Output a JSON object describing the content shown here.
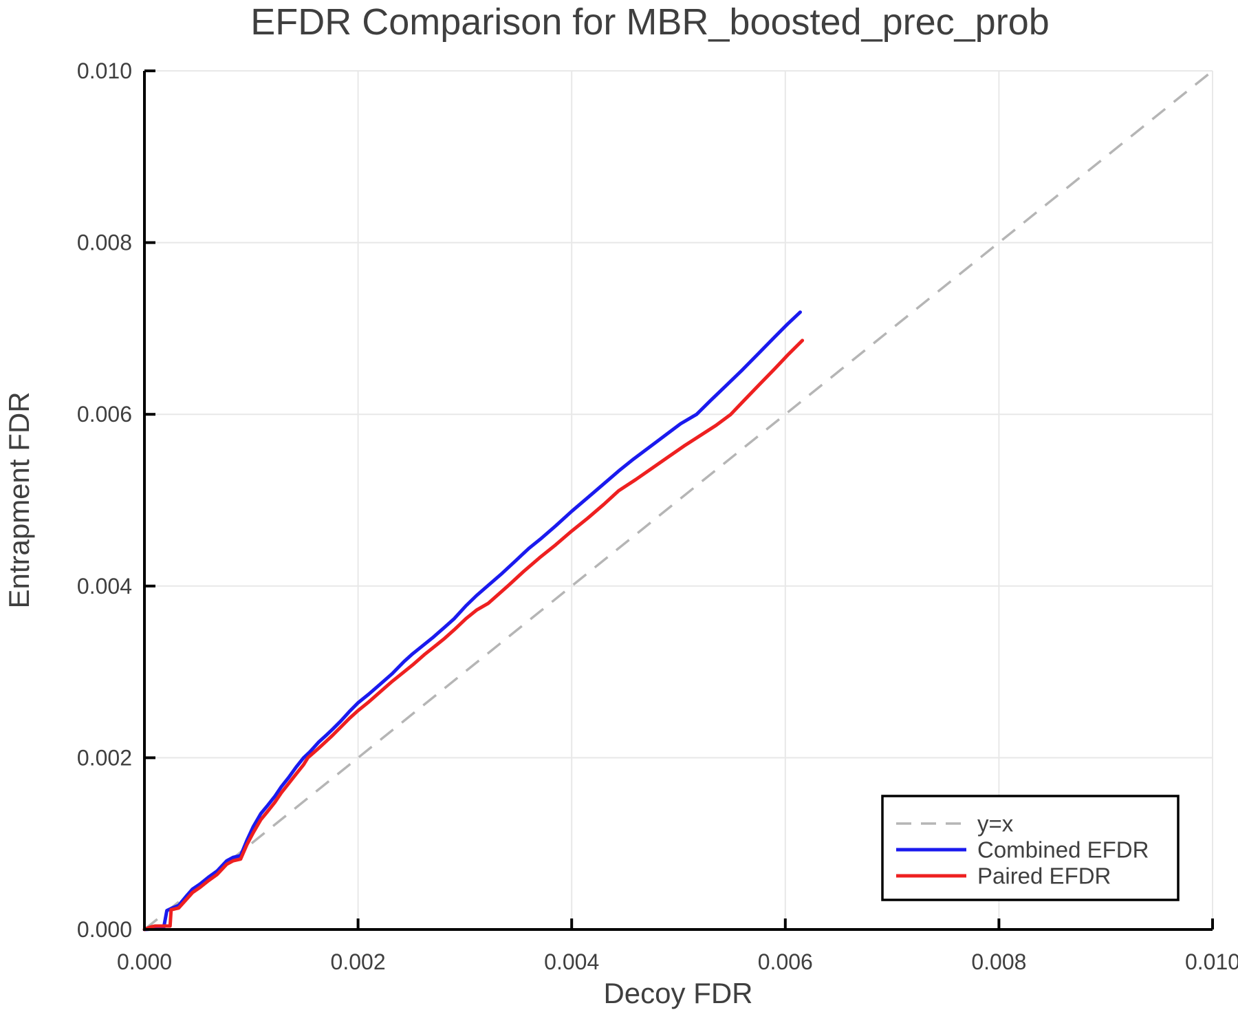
{
  "chart_data": {
    "type": "line",
    "title": "EFDR Comparison for MBR_boosted_prec_prob",
    "xlabel": "Decoy FDR",
    "ylabel": "Entrapment FDR",
    "xlim": [
      0.0,
      0.01
    ],
    "ylim": [
      0.0,
      0.01
    ],
    "x_ticks": [
      0.0,
      0.002,
      0.004,
      0.006,
      0.008,
      0.01
    ],
    "x_tick_labels": [
      "0.000",
      "0.002",
      "0.004",
      "0.006",
      "0.008",
      "0.010"
    ],
    "y_ticks": [
      0.0,
      0.002,
      0.004,
      0.006,
      0.008,
      0.01
    ],
    "y_tick_labels": [
      "0.000",
      "0.002",
      "0.004",
      "0.006",
      "0.008",
      "0.010"
    ],
    "grid": true,
    "legend_position": "lower right",
    "colors": {
      "combined": "#1a1aee",
      "paired": "#ee2020",
      "identity": "#b5b5b5",
      "gridline": "#e8e8e8",
      "text": "#3f3f3f",
      "spine": "#000000",
      "legend_border": "#000000",
      "background": "#ffffff"
    },
    "identity_line": {
      "label": "y=x",
      "from": [
        0.0,
        0.0
      ],
      "to": [
        0.01,
        0.01
      ],
      "dashed": true
    },
    "legend_entries": [
      {
        "label": "y=x",
        "series": "identity",
        "dashed": true
      },
      {
        "label": "Combined EFDR",
        "series": "combined",
        "dashed": false
      },
      {
        "label": "Paired EFDR",
        "series": "paired",
        "dashed": false
      }
    ],
    "series": [
      {
        "name": "Combined EFDR",
        "key": "combined",
        "points": [
          [
            0.0,
            0.0
          ],
          [
            0.00014,
            1e-05
          ],
          [
            0.00018,
            2e-05
          ],
          [
            0.00021,
            0.00022
          ],
          [
            0.00026,
            0.00025
          ],
          [
            0.00032,
            0.00028
          ],
          [
            0.0004,
            0.0004
          ],
          [
            0.00045,
            0.00047
          ],
          [
            0.00052,
            0.00053
          ],
          [
            0.0006,
            0.00061
          ],
          [
            0.00068,
            0.00068
          ],
          [
            0.00077,
            0.0008
          ],
          [
            0.00083,
            0.00084
          ],
          [
            0.0009,
            0.00086
          ],
          [
            0.00096,
            0.00104
          ],
          [
            0.00102,
            0.0012
          ],
          [
            0.00109,
            0.00135
          ],
          [
            0.00115,
            0.00144
          ],
          [
            0.00122,
            0.00155
          ],
          [
            0.00128,
            0.00166
          ],
          [
            0.00135,
            0.00177
          ],
          [
            0.00142,
            0.00189
          ],
          [
            0.00149,
            0.002
          ],
          [
            0.00155,
            0.00207
          ],
          [
            0.00163,
            0.00218
          ],
          [
            0.0017,
            0.00226
          ],
          [
            0.00176,
            0.00233
          ],
          [
            0.00184,
            0.00243
          ],
          [
            0.00192,
            0.00254
          ],
          [
            0.002,
            0.00264
          ],
          [
            0.0021,
            0.00274
          ],
          [
            0.00221,
            0.00286
          ],
          [
            0.00232,
            0.00298
          ],
          [
            0.00243,
            0.00312
          ],
          [
            0.00251,
            0.00321
          ],
          [
            0.00262,
            0.00332
          ],
          [
            0.0027,
            0.0034
          ],
          [
            0.00281,
            0.00352
          ],
          [
            0.0029,
            0.00362
          ],
          [
            0.00301,
            0.00377
          ],
          [
            0.00311,
            0.00389
          ],
          [
            0.00322,
            0.00401
          ],
          [
            0.00335,
            0.00415
          ],
          [
            0.00348,
            0.0043
          ],
          [
            0.0036,
            0.00444
          ],
          [
            0.00372,
            0.00456
          ],
          [
            0.00385,
            0.0047
          ],
          [
            0.004,
            0.00487
          ],
          [
            0.00415,
            0.00503
          ],
          [
            0.0043,
            0.00519
          ],
          [
            0.00444,
            0.00534
          ],
          [
            0.00458,
            0.00548
          ],
          [
            0.00472,
            0.00561
          ],
          [
            0.00487,
            0.00575
          ],
          [
            0.00502,
            0.00589
          ],
          [
            0.00517,
            0.006
          ],
          [
            0.0053,
            0.00616
          ],
          [
            0.00545,
            0.00634
          ],
          [
            0.0056,
            0.00652
          ],
          [
            0.00575,
            0.00671
          ],
          [
            0.0059,
            0.0069
          ],
          [
            0.00602,
            0.00705
          ],
          [
            0.00614,
            0.00719
          ]
        ]
      },
      {
        "name": "Paired EFDR",
        "key": "paired",
        "points": [
          [
            0.0,
            0.0
          ],
          [
            6e-05,
            3e-05
          ],
          [
            0.0001,
            4e-05
          ],
          [
            0.00024,
            4e-05
          ],
          [
            0.00025,
            0.00023
          ],
          [
            0.00032,
            0.00025
          ],
          [
            0.0004,
            0.00036
          ],
          [
            0.00045,
            0.00043
          ],
          [
            0.00052,
            0.00049
          ],
          [
            0.0006,
            0.00057
          ],
          [
            0.00068,
            0.00064
          ],
          [
            0.00077,
            0.00076
          ],
          [
            0.00083,
            0.0008
          ],
          [
            0.0009,
            0.00082
          ],
          [
            0.00096,
            0.00099
          ],
          [
            0.00102,
            0.00113
          ],
          [
            0.00109,
            0.00128
          ],
          [
            0.00115,
            0.00137
          ],
          [
            0.00122,
            0.00148
          ],
          [
            0.00128,
            0.00159
          ],
          [
            0.00135,
            0.0017
          ],
          [
            0.00142,
            0.00181
          ],
          [
            0.00149,
            0.00192
          ],
          [
            0.00153,
            0.002
          ],
          [
            0.00163,
            0.00211
          ],
          [
            0.0017,
            0.00219
          ],
          [
            0.00176,
            0.00226
          ],
          [
            0.00184,
            0.00236
          ],
          [
            0.00192,
            0.00246
          ],
          [
            0.002,
            0.00255
          ],
          [
            0.0021,
            0.00265
          ],
          [
            0.00221,
            0.00277
          ],
          [
            0.00232,
            0.00289
          ],
          [
            0.00243,
            0.003
          ],
          [
            0.00251,
            0.00308
          ],
          [
            0.00262,
            0.0032
          ],
          [
            0.0027,
            0.00328
          ],
          [
            0.00281,
            0.00339
          ],
          [
            0.0029,
            0.00349
          ],
          [
            0.00301,
            0.00362
          ],
          [
            0.00311,
            0.00372
          ],
          [
            0.00322,
            0.0038
          ],
          [
            0.00341,
            0.00401
          ],
          [
            0.00355,
            0.00417
          ],
          [
            0.0037,
            0.00433
          ],
          [
            0.00385,
            0.00448
          ],
          [
            0.004,
            0.00464
          ],
          [
            0.00415,
            0.00479
          ],
          [
            0.0043,
            0.00495
          ],
          [
            0.00444,
            0.00511
          ],
          [
            0.0046,
            0.00524
          ],
          [
            0.00475,
            0.00537
          ],
          [
            0.0049,
            0.0055
          ],
          [
            0.00505,
            0.00563
          ],
          [
            0.0052,
            0.00575
          ],
          [
            0.00535,
            0.00587
          ],
          [
            0.00549,
            0.006
          ],
          [
            0.00562,
            0.00617
          ],
          [
            0.00576,
            0.00635
          ],
          [
            0.0059,
            0.00653
          ],
          [
            0.00603,
            0.0067
          ],
          [
            0.00616,
            0.00686
          ]
        ]
      }
    ]
  }
}
